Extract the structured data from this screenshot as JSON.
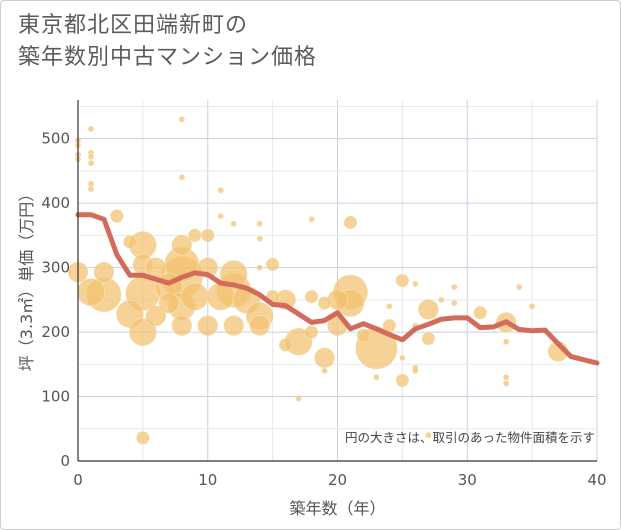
{
  "title": {
    "line1": "東京都北区田端新町の",
    "line2": "築年数別中古マンション価格"
  },
  "annotation": "円の大きさは、取引のあった物件面積を示す",
  "colors": {
    "bubble": "#f2c16d",
    "line": "#d26b5a",
    "grid_major": "#c5d3e0",
    "grid_minor": "#e3eaf1",
    "axis": "#333333"
  },
  "chart_data": {
    "type": "scatter",
    "xlabel": "築年数（年）",
    "ylabel": "坪（3.3㎡）単価（万円）",
    "xlim": [
      0,
      40
    ],
    "ylim": [
      0,
      560
    ],
    "xticks": [
      0,
      10,
      20,
      30,
      40
    ],
    "yticks": [
      0,
      100,
      200,
      300,
      400,
      500
    ],
    "grid": true,
    "bubble_size_meaning": "物件面積",
    "series": [
      {
        "kind": "bubble",
        "points": [
          {
            "x": 0,
            "y": 497,
            "s": 1
          },
          {
            "x": 0,
            "y": 490,
            "s": 1
          },
          {
            "x": 0,
            "y": 475,
            "s": 1
          },
          {
            "x": 0,
            "y": 468,
            "s": 1
          },
          {
            "x": 0,
            "y": 293,
            "s": 3
          },
          {
            "x": 1,
            "y": 515,
            "s": 1
          },
          {
            "x": 1,
            "y": 478,
            "s": 1
          },
          {
            "x": 1,
            "y": 472,
            "s": 1
          },
          {
            "x": 1,
            "y": 462,
            "s": 1
          },
          {
            "x": 1,
            "y": 430,
            "s": 1
          },
          {
            "x": 1,
            "y": 422,
            "s": 1
          },
          {
            "x": 1,
            "y": 262,
            "s": 4
          },
          {
            "x": 2,
            "y": 258,
            "s": 5
          },
          {
            "x": 2,
            "y": 293,
            "s": 3
          },
          {
            "x": 3,
            "y": 380,
            "s": 2
          },
          {
            "x": 4,
            "y": 340,
            "s": 2
          },
          {
            "x": 4,
            "y": 228,
            "s": 4
          },
          {
            "x": 5,
            "y": 335,
            "s": 4
          },
          {
            "x": 5,
            "y": 305,
            "s": 3
          },
          {
            "x": 5,
            "y": 260,
            "s": 5
          },
          {
            "x": 5,
            "y": 200,
            "s": 4
          },
          {
            "x": 5,
            "y": 36,
            "s": 2
          },
          {
            "x": 6,
            "y": 300,
            "s": 3
          },
          {
            "x": 6,
            "y": 225,
            "s": 3
          },
          {
            "x": 7,
            "y": 270,
            "s": 4
          },
          {
            "x": 7,
            "y": 245,
            "s": 3
          },
          {
            "x": 8,
            "y": 530,
            "s": 1
          },
          {
            "x": 8,
            "y": 440,
            "s": 1
          },
          {
            "x": 8,
            "y": 335,
            "s": 3
          },
          {
            "x": 8,
            "y": 305,
            "s": 5
          },
          {
            "x": 8,
            "y": 285,
            "s": 6
          },
          {
            "x": 8,
            "y": 240,
            "s": 4
          },
          {
            "x": 8,
            "y": 210,
            "s": 3
          },
          {
            "x": 9,
            "y": 350,
            "s": 2
          },
          {
            "x": 9,
            "y": 255,
            "s": 4
          },
          {
            "x": 10,
            "y": 350,
            "s": 2
          },
          {
            "x": 10,
            "y": 300,
            "s": 3
          },
          {
            "x": 10,
            "y": 210,
            "s": 3
          },
          {
            "x": 11,
            "y": 420,
            "s": 1
          },
          {
            "x": 11,
            "y": 380,
            "s": 1
          },
          {
            "x": 11,
            "y": 255,
            "s": 4
          },
          {
            "x": 12,
            "y": 368,
            "s": 1
          },
          {
            "x": 12,
            "y": 290,
            "s": 4
          },
          {
            "x": 12,
            "y": 265,
            "s": 5
          },
          {
            "x": 12,
            "y": 210,
            "s": 3
          },
          {
            "x": 13,
            "y": 250,
            "s": 4
          },
          {
            "x": 14,
            "y": 368,
            "s": 1
          },
          {
            "x": 14,
            "y": 345,
            "s": 1
          },
          {
            "x": 14,
            "y": 300,
            "s": 1
          },
          {
            "x": 14,
            "y": 225,
            "s": 4
          },
          {
            "x": 14,
            "y": 210,
            "s": 3
          },
          {
            "x": 15,
            "y": 305,
            "s": 2
          },
          {
            "x": 15,
            "y": 255,
            "s": 2
          },
          {
            "x": 16,
            "y": 250,
            "s": 3
          },
          {
            "x": 16,
            "y": 180,
            "s": 2
          },
          {
            "x": 17,
            "y": 185,
            "s": 4
          },
          {
            "x": 17,
            "y": 97,
            "s": 1
          },
          {
            "x": 18,
            "y": 375,
            "s": 1
          },
          {
            "x": 18,
            "y": 255,
            "s": 2
          },
          {
            "x": 18,
            "y": 200,
            "s": 2
          },
          {
            "x": 19,
            "y": 245,
            "s": 2
          },
          {
            "x": 19,
            "y": 160,
            "s": 3
          },
          {
            "x": 19,
            "y": 140,
            "s": 1
          },
          {
            "x": 20,
            "y": 250,
            "s": 3
          },
          {
            "x": 20,
            "y": 210,
            "s": 3
          },
          {
            "x": 21,
            "y": 370,
            "s": 2
          },
          {
            "x": 21,
            "y": 262,
            "s": 5
          },
          {
            "x": 21,
            "y": 245,
            "s": 4
          },
          {
            "x": 22,
            "y": 195,
            "s": 2
          },
          {
            "x": 23,
            "y": 175,
            "s": 6
          },
          {
            "x": 23,
            "y": 130,
            "s": 1
          },
          {
            "x": 24,
            "y": 240,
            "s": 1
          },
          {
            "x": 24,
            "y": 210,
            "s": 2
          },
          {
            "x": 25,
            "y": 280,
            "s": 2
          },
          {
            "x": 25,
            "y": 160,
            "s": 1
          },
          {
            "x": 25,
            "y": 125,
            "s": 2
          },
          {
            "x": 26,
            "y": 275,
            "s": 1
          },
          {
            "x": 26,
            "y": 210,
            "s": 1
          },
          {
            "x": 26,
            "y": 145,
            "s": 1
          },
          {
            "x": 26,
            "y": 140,
            "s": 1
          },
          {
            "x": 27,
            "y": 235,
            "s": 3
          },
          {
            "x": 27,
            "y": 190,
            "s": 2
          },
          {
            "x": 27,
            "y": 40,
            "s": 1
          },
          {
            "x": 28,
            "y": 250,
            "s": 1
          },
          {
            "x": 29,
            "y": 270,
            "s": 1
          },
          {
            "x": 29,
            "y": 245,
            "s": 1
          },
          {
            "x": 31,
            "y": 230,
            "s": 2
          },
          {
            "x": 33,
            "y": 215,
            "s": 3
          },
          {
            "x": 33,
            "y": 185,
            "s": 1
          },
          {
            "x": 33,
            "y": 130,
            "s": 1
          },
          {
            "x": 33,
            "y": 120,
            "s": 1
          },
          {
            "x": 34,
            "y": 270,
            "s": 1
          },
          {
            "x": 35,
            "y": 240,
            "s": 1
          },
          {
            "x": 37,
            "y": 170,
            "s": 3
          }
        ]
      },
      {
        "kind": "line",
        "x": [
          0,
          1,
          2,
          3,
          4,
          5,
          6,
          7,
          8,
          9,
          10,
          11,
          12,
          13,
          14,
          15,
          16,
          17,
          18,
          19,
          20,
          21,
          22,
          23,
          24,
          25,
          26,
          27,
          28,
          29,
          30,
          31,
          32,
          33,
          34,
          35,
          36,
          37,
          38,
          39,
          40
        ],
        "y": [
          382,
          382,
          375,
          320,
          288,
          288,
          282,
          276,
          285,
          292,
          289,
          276,
          273,
          268,
          258,
          243,
          241,
          228,
          215,
          218,
          230,
          205,
          213,
          205,
          196,
          188,
          205,
          212,
          220,
          222,
          222,
          207,
          208,
          216,
          204,
          202,
          203,
          182,
          162,
          157,
          152
        ]
      }
    ]
  }
}
